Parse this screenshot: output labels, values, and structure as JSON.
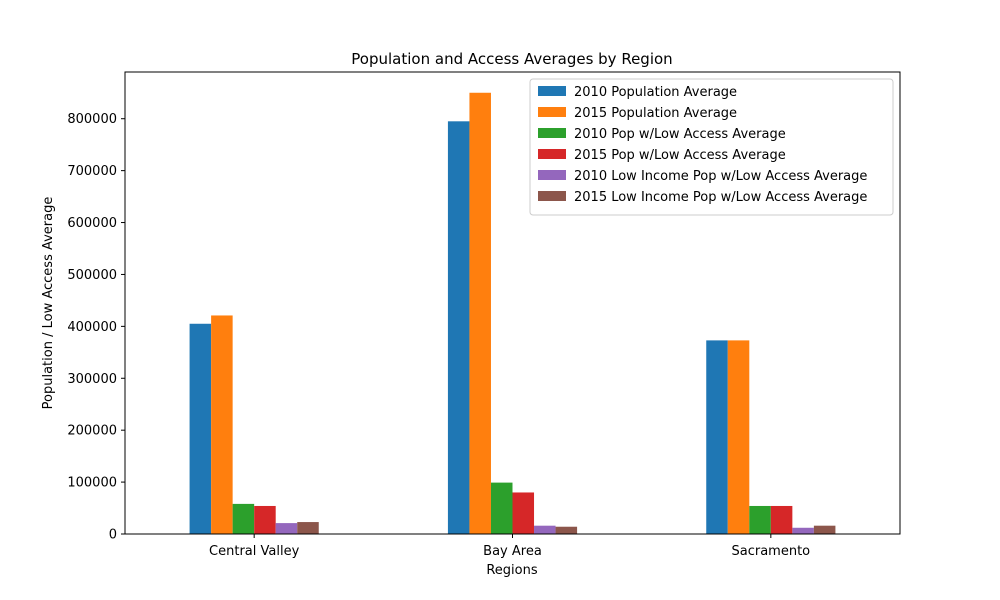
{
  "chart_data": {
    "type": "bar",
    "title": "Population and Access Averages by Region",
    "xlabel": "Regions",
    "ylabel": "Population / Low Access Average",
    "categories": [
      "Central Valley",
      "Bay Area",
      "Sacramento"
    ],
    "ylim": [
      0,
      890000
    ],
    "yticks": [
      0,
      100000,
      200000,
      300000,
      400000,
      500000,
      600000,
      700000,
      800000
    ],
    "grid": false,
    "legend_position": "top-right",
    "series": [
      {
        "name": "2010 Population Average",
        "color": "#1f77b4",
        "values": [
          405000,
          795000,
          373000
        ]
      },
      {
        "name": "2015 Population Average",
        "color": "#ff7f0e",
        "values": [
          421000,
          850000,
          373000
        ]
      },
      {
        "name": "2010 Pop w/Low Access Average",
        "color": "#2ca02c",
        "values": [
          58000,
          99000,
          54000
        ]
      },
      {
        "name": "2015 Pop w/Low Access Average",
        "color": "#d62728",
        "values": [
          54000,
          80000,
          54000
        ]
      },
      {
        "name": "2010 Low Income Pop w/Low Access Average",
        "color": "#9467bd",
        "values": [
          21000,
          16000,
          12000
        ]
      },
      {
        "name": "2015 Low Income Pop w/Low Access Average",
        "color": "#8c564b",
        "values": [
          23000,
          14000,
          16000
        ]
      }
    ]
  }
}
